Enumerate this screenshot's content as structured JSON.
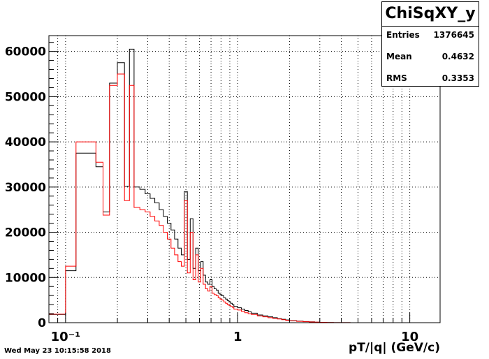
{
  "chart_data": {
    "type": "histogram",
    "title": "",
    "xlabel": "pT/|q| (GeV/c)",
    "ylabel": "",
    "x_scale": "log",
    "xlim": [
      0.08,
      15
    ],
    "ylim": [
      0,
      63500
    ],
    "grid": true,
    "x_tick_labels": [
      {
        "value": 0.1,
        "label": "10⁻¹"
      },
      {
        "value": 1,
        "label": "1"
      },
      {
        "value": 10,
        "label": "10"
      }
    ],
    "y_ticks": [
      0,
      10000,
      20000,
      30000,
      40000,
      50000,
      60000
    ],
    "bin_edges": [
      0.08,
      0.1,
      0.115,
      0.13,
      0.15,
      0.165,
      0.18,
      0.2,
      0.22,
      0.235,
      0.25,
      0.27,
      0.29,
      0.31,
      0.33,
      0.35,
      0.37,
      0.39,
      0.41,
      0.43,
      0.45,
      0.47,
      0.49,
      0.51,
      0.53,
      0.55,
      0.57,
      0.59,
      0.61,
      0.63,
      0.65,
      0.67,
      0.69,
      0.71,
      0.73,
      0.75,
      0.77,
      0.79,
      0.81,
      0.83,
      0.85,
      0.87,
      0.89,
      0.91,
      0.93,
      0.95,
      1.0,
      1.05,
      1.1,
      1.15,
      1.2,
      1.3,
      1.4,
      1.5,
      1.6,
      1.7,
      1.8,
      1.9,
      2.0,
      2.2,
      2.4,
      2.6,
      2.8,
      3.0,
      3.3,
      3.6,
      4.0,
      4.5,
      5.0,
      6.0,
      7.0,
      8.0,
      9.0,
      10.0,
      12.0,
      15.0
    ],
    "series": [
      {
        "color": "#000000",
        "values": [
          1800,
          11500,
          37500,
          37500,
          34500,
          24500,
          53000,
          57500,
          30200,
          60500,
          30000,
          29500,
          28500,
          27500,
          26500,
          25000,
          23500,
          22000,
          20500,
          18500,
          16500,
          15000,
          29000,
          14000,
          23000,
          12000,
          16500,
          11500,
          13500,
          10500,
          9000,
          8500,
          9500,
          8000,
          7500,
          7200,
          6500,
          6200,
          6000,
          5500,
          5200,
          4900,
          4600,
          4300,
          4000,
          3600,
          3300,
          3000,
          2700,
          2400,
          2100,
          1700,
          1500,
          1300,
          1100,
          900,
          750,
          600,
          450,
          350,
          250,
          180,
          120,
          80,
          40,
          20,
          10,
          5,
          0,
          0,
          0,
          0,
          0,
          0,
          0
        ]
      },
      {
        "color": "#ff0000",
        "values": [
          1900,
          12500,
          40000,
          40000,
          35500,
          23800,
          52500,
          55000,
          27000,
          52500,
          25500,
          25000,
          24500,
          23500,
          22500,
          21500,
          20000,
          18500,
          16500,
          15000,
          13500,
          12500,
          27000,
          11000,
          20000,
          9500,
          15000,
          9000,
          12000,
          8500,
          7500,
          7000,
          8000,
          6500,
          6200,
          6000,
          5500,
          5200,
          5000,
          4600,
          4300,
          4000,
          3800,
          3600,
          3400,
          3000,
          2800,
          2500,
          2200,
          2000,
          1800,
          1500,
          1300,
          1100,
          950,
          800,
          650,
          520,
          400,
          300,
          220,
          160,
          110,
          70,
          35,
          18,
          9,
          4,
          0,
          0,
          0,
          0,
          0,
          0,
          0
        ]
      }
    ]
  },
  "stats": {
    "title": "ChiSqXY_y",
    "entries_label": "Entries",
    "entries": "1376645",
    "mean_label": "Mean",
    "mean": "0.4632",
    "rms_label": "RMS",
    "rms": "0.3353"
  },
  "footer": {
    "timestamp": "Wed May 23 10:15:58 2018"
  }
}
